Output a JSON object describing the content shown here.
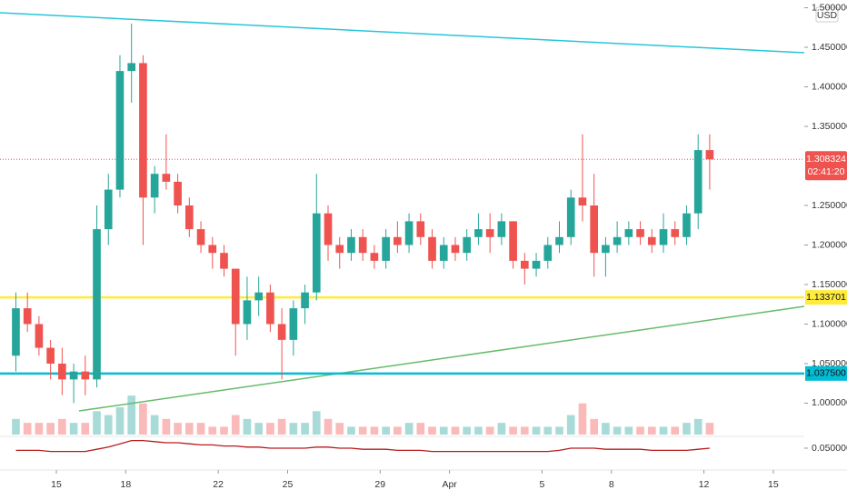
{
  "chart_data": {
    "type": "candlestick",
    "currency": "USD",
    "x": [
      13,
      13.5,
      14,
      14.5,
      15,
      15.5,
      16,
      16.5,
      17,
      17.5,
      18,
      18.5,
      19,
      19.5,
      20,
      20.5,
      21,
      21.5,
      22,
      22.5,
      23,
      23.5,
      24,
      24.5,
      25,
      25.5,
      26,
      26.5,
      27,
      27.5,
      28,
      28.5,
      29,
      29.5,
      30,
      30.5,
      31,
      31.5,
      32,
      32.5,
      33,
      33.5,
      34,
      34.5,
      35,
      35.5,
      36,
      36.5,
      37,
      37.5,
      38,
      38.5,
      39,
      39.5,
      40,
      40.5,
      41,
      41.5,
      42,
      42.5,
      43
    ],
    "open": [
      1.06,
      1.12,
      1.1,
      1.07,
      1.05,
      1.03,
      1.04,
      1.03,
      1.22,
      1.27,
      1.42,
      1.43,
      1.26,
      1.29,
      1.28,
      1.25,
      1.22,
      1.2,
      1.19,
      1.17,
      1.1,
      1.13,
      1.14,
      1.1,
      1.08,
      1.12,
      1.14,
      1.24,
      1.2,
      1.19,
      1.21,
      1.19,
      1.18,
      1.21,
      1.2,
      1.23,
      1.21,
      1.18,
      1.2,
      1.19,
      1.21,
      1.22,
      1.21,
      1.23,
      1.18,
      1.17,
      1.18,
      1.2,
      1.21,
      1.26,
      1.25,
      1.19,
      1.2,
      1.21,
      1.22,
      1.21,
      1.2,
      1.22,
      1.21,
      1.24,
      1.32
    ],
    "high": [
      1.14,
      1.14,
      1.11,
      1.08,
      1.07,
      1.05,
      1.06,
      1.25,
      1.29,
      1.44,
      1.48,
      1.44,
      1.3,
      1.34,
      1.29,
      1.26,
      1.23,
      1.21,
      1.2,
      1.17,
      1.16,
      1.16,
      1.15,
      1.12,
      1.13,
      1.15,
      1.29,
      1.25,
      1.21,
      1.22,
      1.22,
      1.2,
      1.22,
      1.23,
      1.24,
      1.24,
      1.22,
      1.21,
      1.21,
      1.22,
      1.24,
      1.24,
      1.24,
      1.23,
      1.19,
      1.19,
      1.21,
      1.23,
      1.27,
      1.34,
      1.29,
      1.21,
      1.23,
      1.23,
      1.23,
      1.22,
      1.24,
      1.23,
      1.25,
      1.34,
      1.34
    ],
    "low": [
      1.04,
      1.09,
      1.06,
      1.03,
      1.01,
      1.0,
      1.01,
      1.02,
      1.2,
      1.26,
      1.38,
      1.2,
      1.24,
      1.27,
      1.24,
      1.21,
      1.19,
      1.17,
      1.16,
      1.06,
      1.08,
      1.11,
      1.09,
      1.03,
      1.06,
      1.1,
      1.13,
      1.18,
      1.17,
      1.18,
      1.18,
      1.17,
      1.17,
      1.19,
      1.19,
      1.2,
      1.17,
      1.17,
      1.18,
      1.18,
      1.2,
      1.19,
      1.2,
      1.17,
      1.15,
      1.16,
      1.17,
      1.19,
      1.2,
      1.23,
      1.16,
      1.16,
      1.19,
      1.2,
      1.2,
      1.19,
      1.19,
      1.2,
      1.2,
      1.22,
      1.27
    ],
    "close": [
      1.12,
      1.1,
      1.07,
      1.05,
      1.03,
      1.04,
      1.03,
      1.22,
      1.27,
      1.42,
      1.43,
      1.26,
      1.29,
      1.28,
      1.25,
      1.22,
      1.2,
      1.19,
      1.17,
      1.1,
      1.13,
      1.14,
      1.1,
      1.08,
      1.12,
      1.14,
      1.24,
      1.2,
      1.19,
      1.21,
      1.19,
      1.18,
      1.21,
      1.2,
      1.23,
      1.21,
      1.18,
      1.2,
      1.19,
      1.21,
      1.22,
      1.21,
      1.23,
      1.18,
      1.17,
      1.18,
      1.2,
      1.21,
      1.26,
      1.25,
      1.19,
      1.2,
      1.21,
      1.22,
      1.21,
      1.2,
      1.22,
      1.21,
      1.24,
      1.32,
      1.308324
    ],
    "volume": [
      4,
      3,
      3,
      3,
      4,
      3,
      3,
      6,
      5,
      7,
      10,
      8,
      5,
      4,
      3,
      3,
      3,
      2,
      2,
      5,
      4,
      3,
      3,
      4,
      3,
      3,
      6,
      4,
      3,
      2,
      2,
      2,
      2,
      2,
      3,
      3,
      2,
      2,
      2,
      2,
      2,
      2,
      3,
      2,
      2,
      2,
      2,
      2,
      5,
      8,
      4,
      3,
      2,
      2,
      2,
      2,
      2,
      2,
      3,
      4,
      3
    ],
    "volume_lim": [
      0,
      14
    ],
    "up_color": "#26a69a",
    "down_color": "#ef5350",
    "xlim": [
      12.564,
      47.34
    ],
    "ylim": [
      0.958,
      1.5098
    ],
    "xticks": [
      15,
      18,
      22,
      25,
      29,
      {
        "value": 32,
        "label": "Apr"
      },
      {
        "value": 36,
        "label": "5"
      },
      {
        "value": 39,
        "label": "8"
      },
      {
        "value": 43,
        "label": "12"
      },
      {
        "value": 46,
        "label": "15"
      }
    ],
    "yticks": [
      {
        "value": 1.5,
        "label": "1.500000"
      },
      {
        "value": 1.45,
        "label": "1.450000"
      },
      {
        "value": 1.4,
        "label": "1.400000"
      },
      {
        "value": 1.35,
        "label": "1.350000"
      },
      {
        "value": 1.25,
        "label": "1.250000"
      },
      {
        "value": 1.2,
        "label": "1.200000"
      },
      {
        "value": 1.15,
        "label": "1.150000"
      },
      {
        "value": 1.1,
        "label": "1.100000"
      },
      {
        "value": 1.05,
        "label": "1.050000"
      },
      {
        "value": 1.0,
        "label": "1.000000"
      }
    ],
    "last_price": {
      "value": 1.308324,
      "label": "1.308324",
      "countdown": "02:41:20",
      "color": "#ef5350"
    },
    "levels": [
      {
        "value": 1.133701,
        "label": "1.133701",
        "color": "#ffeb3b"
      },
      {
        "value": 1.0375,
        "label": "1.037500",
        "color": "#00bcd4"
      }
    ],
    "trendlines": [
      {
        "x": [
          12.564,
          47.34
        ],
        "y": [
          1.4937,
          1.4431
        ],
        "color": "#26c6da"
      },
      {
        "x": [
          15.98,
          47.34
        ],
        "y": [
          0.9902,
          1.1224
        ],
        "color": "#66bb6a"
      }
    ],
    "indicator": {
      "values": [
        0.048,
        0.048,
        0.048,
        0.047,
        0.047,
        0.047,
        0.047,
        0.049,
        0.051,
        0.054,
        0.057,
        0.057,
        0.056,
        0.055,
        0.055,
        0.054,
        0.053,
        0.053,
        0.052,
        0.052,
        0.051,
        0.051,
        0.05,
        0.05,
        0.05,
        0.05,
        0.051,
        0.051,
        0.05,
        0.05,
        0.049,
        0.049,
        0.049,
        0.048,
        0.048,
        0.048,
        0.047,
        0.047,
        0.047,
        0.047,
        0.047,
        0.047,
        0.047,
        0.047,
        0.047,
        0.047,
        0.047,
        0.048,
        0.05,
        0.05,
        0.05,
        0.049,
        0.049,
        0.049,
        0.049,
        0.048,
        0.048,
        0.048,
        0.048,
        0.049,
        0.05
      ],
      "ylim": [
        0.03,
        0.0608
      ],
      "yticks": [
        {
          "value": 0.05,
          "label": "0.050000"
        }
      ],
      "color": "#b71c1c"
    }
  }
}
